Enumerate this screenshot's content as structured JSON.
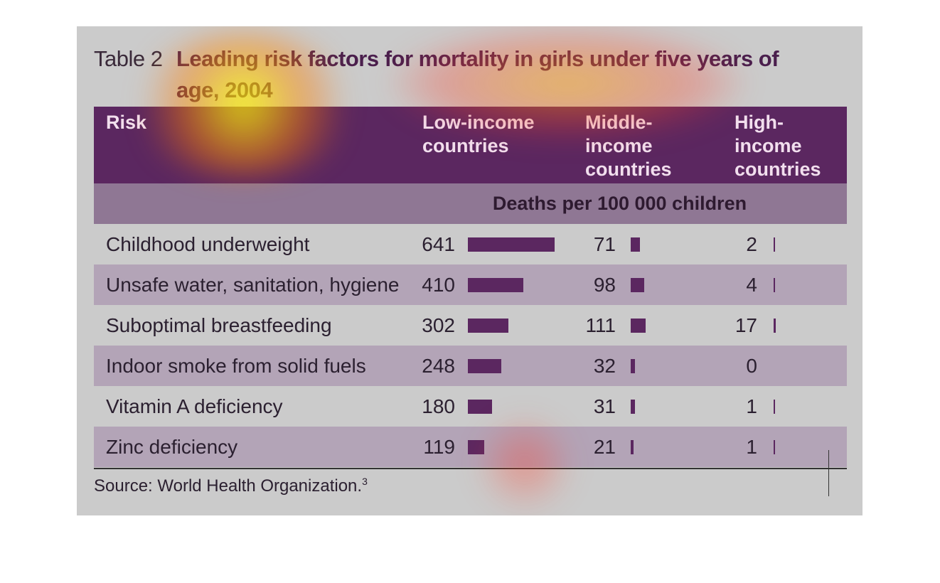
{
  "header": {
    "label": "Table 2",
    "title": "Leading risk factors for mortality in girls under five years of age, 2004"
  },
  "table": {
    "columns": [
      "Risk",
      "Low-income countries",
      "Middle-income countries",
      "High-income countries"
    ],
    "unit_row": "Deaths per 100 000 children",
    "rows": [
      [
        "Childhood underweight",
        641,
        71,
        2
      ],
      [
        "Unsafe water, sanitation, hygiene",
        410,
        98,
        4
      ],
      [
        "Suboptimal breastfeeding",
        302,
        111,
        17
      ],
      [
        "Indoor smoke from solid fuels",
        248,
        32,
        0
      ],
      [
        "Vitamin A deficiency",
        180,
        31,
        1
      ],
      [
        "Zinc deficiency",
        119,
        21,
        1
      ]
    ]
  },
  "source": {
    "text": "Source: World Health Organization.",
    "note": "3"
  }
}
